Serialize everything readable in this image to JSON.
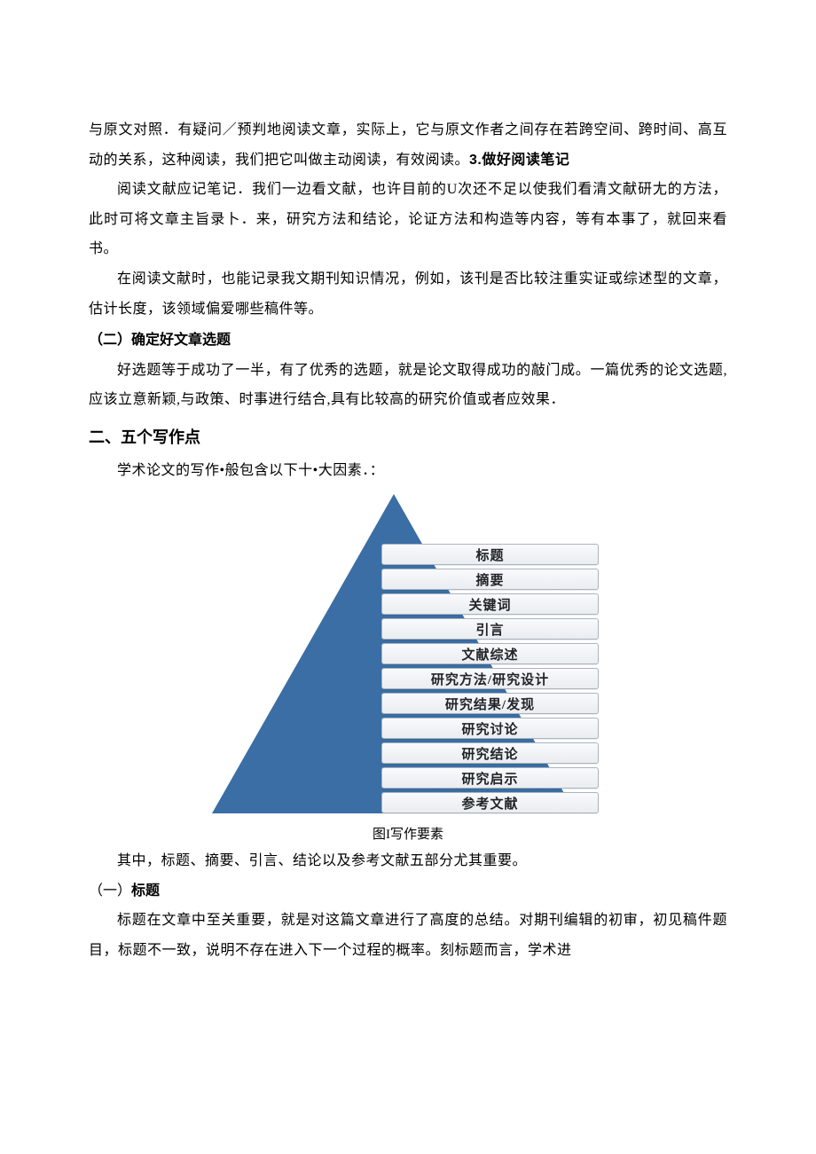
{
  "paragraphs": {
    "p1_a": "与原文对照．有疑问／预判地阅读文章，实际上，它与原文作者之间存在若跨空间、跨时间、高互动的关系，这种阅读，我们把它叫做主动阅读，有效阅读。",
    "p1_bold": "3.做好阅读笔记",
    "p2": "阅读文献应记笔记．我们一边看文献，也许目前的U次还不足以使我们看清文献研尢的方法，此时可将文章主旨录卜．来，研究方法和结论，论证方法和构造等内容，等有本事了，就回来看书。",
    "p3": "在阅读文献时，也能记录我文期刊知识情况，例如，该刊是否比较注重实证或综述型的文章，估计长度，该领域偏爱哪些稿件等。",
    "p5": "好选题等于成功了一半，有了优秀的选题，就是论文取得成功的敲门成。一篇优秀的论文选题,应该立意新颖,与政策、时事进行结合,具有比较高的研究价值或者应效果．",
    "p7": "学术论文的写作•般包含以下十•大因素．：",
    "p8": "其中，标题、摘要、引言、结论以及参考文献五部分尤其重要。",
    "p9": "标题在文章中至关重要，就是对这篇文章进行了高度的总结。对期刊编辑的初审，初见稿件题目，标题不一致，说明不存在进入下一个过程的概率。刻标题而言，学术进"
  },
  "headings": {
    "h2_a": "（二）确定好文章选题",
    "h1": "二、五个写作点",
    "h3_prefix": "（一）",
    "h3_label": "标题"
  },
  "figure": {
    "caption": "图I写作要素",
    "triangle_color": "#3a6ea5",
    "items": [
      "标题",
      "摘要",
      "关键词",
      "引言",
      "文献综述",
      "研究方法/研究设计",
      "研究结果/发现",
      "研究讨论",
      "研究结论",
      "研究启示",
      "参考文献"
    ]
  }
}
